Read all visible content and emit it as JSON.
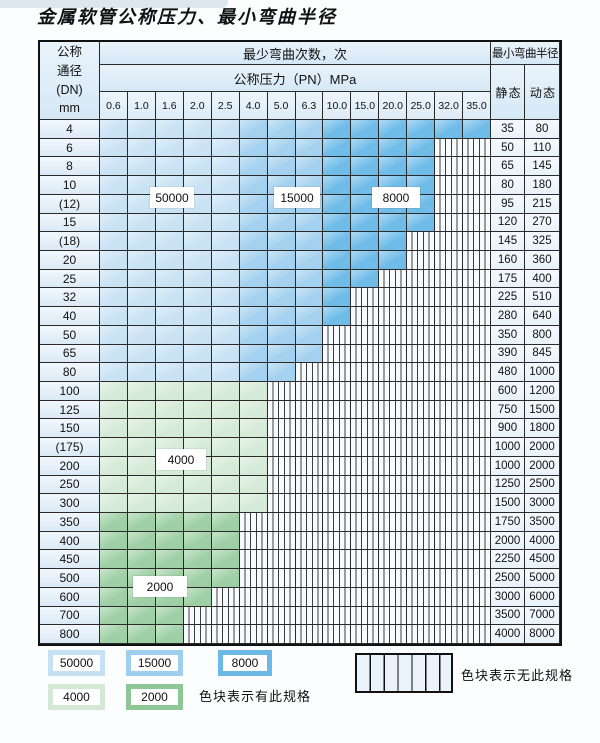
{
  "title": "金属软管公称压力、最小弯曲半径",
  "table": {
    "corner": {
      "line1": "公称",
      "line2": "通径",
      "line3": "(DN)",
      "line4": "mm"
    },
    "bend_cycles_header": "最少弯曲次数，次",
    "pressure_header": "公称压力（PN）MPa",
    "radius_header": "最小弯曲半径",
    "static_label": "静 态",
    "dynamic_label": "动 态",
    "pressures": [
      "0.6",
      "1.0",
      "1.6",
      "2.0",
      "2.5",
      "4.0",
      "5.0",
      "6.3",
      "10.0",
      "15.0",
      "20.0",
      "25.0",
      "32.0",
      "35.0"
    ],
    "band_codes": {
      "A": "50000",
      "B": "15000",
      "C": "8000",
      "D": "4000",
      "E": "2000",
      "-": "无此规格"
    },
    "rows": [
      {
        "dn": "4",
        "bands": "AAAAABBBCCCCCC",
        "static": "35",
        "dynamic": "80"
      },
      {
        "dn": "6",
        "bands": "AAAAABBBCCCC--",
        "static": "50",
        "dynamic": "110"
      },
      {
        "dn": "8",
        "bands": "AAAAABBBCCCC--",
        "static": "65",
        "dynamic": "145"
      },
      {
        "dn": "10",
        "bands": "AAAAABBBCCCC--",
        "static": "80",
        "dynamic": "180"
      },
      {
        "dn": "(12)",
        "bands": "AAAAABBBCCCC--",
        "static": "95",
        "dynamic": "215"
      },
      {
        "dn": "15",
        "bands": "AAAAABBBCCCC--",
        "static": "120",
        "dynamic": "270"
      },
      {
        "dn": "(18)",
        "bands": "AAAAABBBCCC---",
        "static": "145",
        "dynamic": "325"
      },
      {
        "dn": "20",
        "bands": "AAAAABBBCCC---",
        "static": "160",
        "dynamic": "360"
      },
      {
        "dn": "25",
        "bands": "AAAAABBBCC----",
        "static": "175",
        "dynamic": "400"
      },
      {
        "dn": "32",
        "bands": "AAAAABBBC-----",
        "static": "225",
        "dynamic": "510"
      },
      {
        "dn": "40",
        "bands": "AAAAABBBC-----",
        "static": "280",
        "dynamic": "640"
      },
      {
        "dn": "50",
        "bands": "AAAAABBB------",
        "static": "350",
        "dynamic": "800"
      },
      {
        "dn": "65",
        "bands": "AAAAABBB------",
        "static": "390",
        "dynamic": "845"
      },
      {
        "dn": "80",
        "bands": "AAAAABB-------",
        "static": "480",
        "dynamic": "1000"
      },
      {
        "dn": "100",
        "bands": "DDDDDD--------",
        "static": "600",
        "dynamic": "1200"
      },
      {
        "dn": "125",
        "bands": "DDDDDD--------",
        "static": "750",
        "dynamic": "1500"
      },
      {
        "dn": "150",
        "bands": "DDDDDD--------",
        "static": "900",
        "dynamic": "1800"
      },
      {
        "dn": "(175)",
        "bands": "DDDDDD--------",
        "static": "1000",
        "dynamic": "2000"
      },
      {
        "dn": "200",
        "bands": "DDDDDD--------",
        "static": "1000",
        "dynamic": "2000"
      },
      {
        "dn": "250",
        "bands": "DDDDDD--------",
        "static": "1250",
        "dynamic": "2500"
      },
      {
        "dn": "300",
        "bands": "DDDDDD--------",
        "static": "1500",
        "dynamic": "3000"
      },
      {
        "dn": "350",
        "bands": "EEEEE---------",
        "static": "1750",
        "dynamic": "3500"
      },
      {
        "dn": "400",
        "bands": "EEEEE---------",
        "static": "2000",
        "dynamic": "4000"
      },
      {
        "dn": "450",
        "bands": "EEEEE---------",
        "static": "2250",
        "dynamic": "4500"
      },
      {
        "dn": "500",
        "bands": "EEEEE---------",
        "static": "2500",
        "dynamic": "5000"
      },
      {
        "dn": "600",
        "bands": "EEEE----------",
        "static": "3000",
        "dynamic": "6000"
      },
      {
        "dn": "700",
        "bands": "EEE-----------",
        "static": "3500",
        "dynamic": "7000"
      },
      {
        "dn": "800",
        "bands": "EEE-----------",
        "static": "4000",
        "dynamic": "8000"
      }
    ]
  },
  "overlays": {
    "b50000": "50000",
    "b15000": "15000",
    "b8000": "8000",
    "b4000": "4000",
    "b2000": "2000"
  },
  "legend": {
    "chips": [
      {
        "label": "50000",
        "color": "#c7e1f4"
      },
      {
        "label": "15000",
        "color": "#9fcfee"
      },
      {
        "label": "8000",
        "color": "#6db9e6"
      },
      {
        "label": "4000",
        "color": "#d3e9d4"
      },
      {
        "label": "2000",
        "color": "#8cc795"
      }
    ],
    "has_spec_text": "色块表示有此规格",
    "no_spec_text": "色块表示无此规格"
  },
  "colors": {
    "band_50000": "#c9e3f5",
    "band_15000": "#a4d1ef",
    "band_8000": "#6fbce9",
    "band_4000": "#d6ebd7",
    "band_2000": "#9fd0a5",
    "hatch_bg": "#f8fbfe",
    "header_bg": "#d9eaf7",
    "grid_line": "#2a2a2a"
  }
}
